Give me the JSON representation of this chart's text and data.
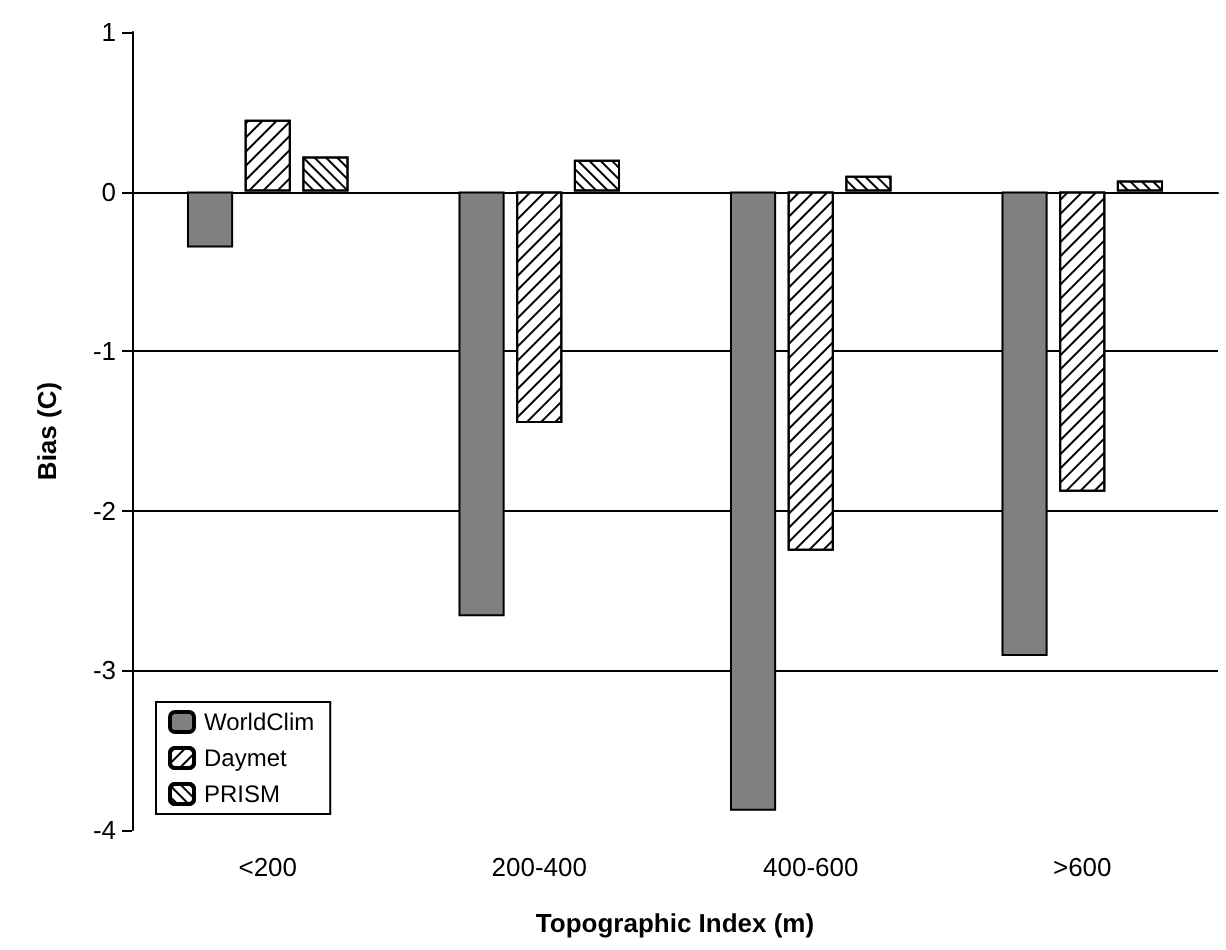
{
  "chart_data": {
    "type": "bar",
    "xlabel": "Topographic Index (m)",
    "ylabel": "Bias (C)",
    "categories": [
      "<200",
      "200-400",
      "400-600",
      ">600"
    ],
    "series": [
      {
        "name": "WorldClim",
        "color": "#808080",
        "values": [
          -0.35,
          -2.66,
          -3.88,
          -2.91
        ]
      },
      {
        "name": "Daymet",
        "color": "#000000",
        "values": [
          0.45,
          -1.45,
          -2.25,
          -1.88
        ]
      },
      {
        "name": "PRISM",
        "color": "#000000",
        "values": [
          0.22,
          0.2,
          0.1,
          0.07
        ]
      }
    ],
    "ylim": [
      -4,
      1
    ],
    "yticks": [
      -4,
      -3,
      -2,
      -1,
      0,
      1
    ],
    "grid": "y",
    "legend": "bottom left"
  }
}
